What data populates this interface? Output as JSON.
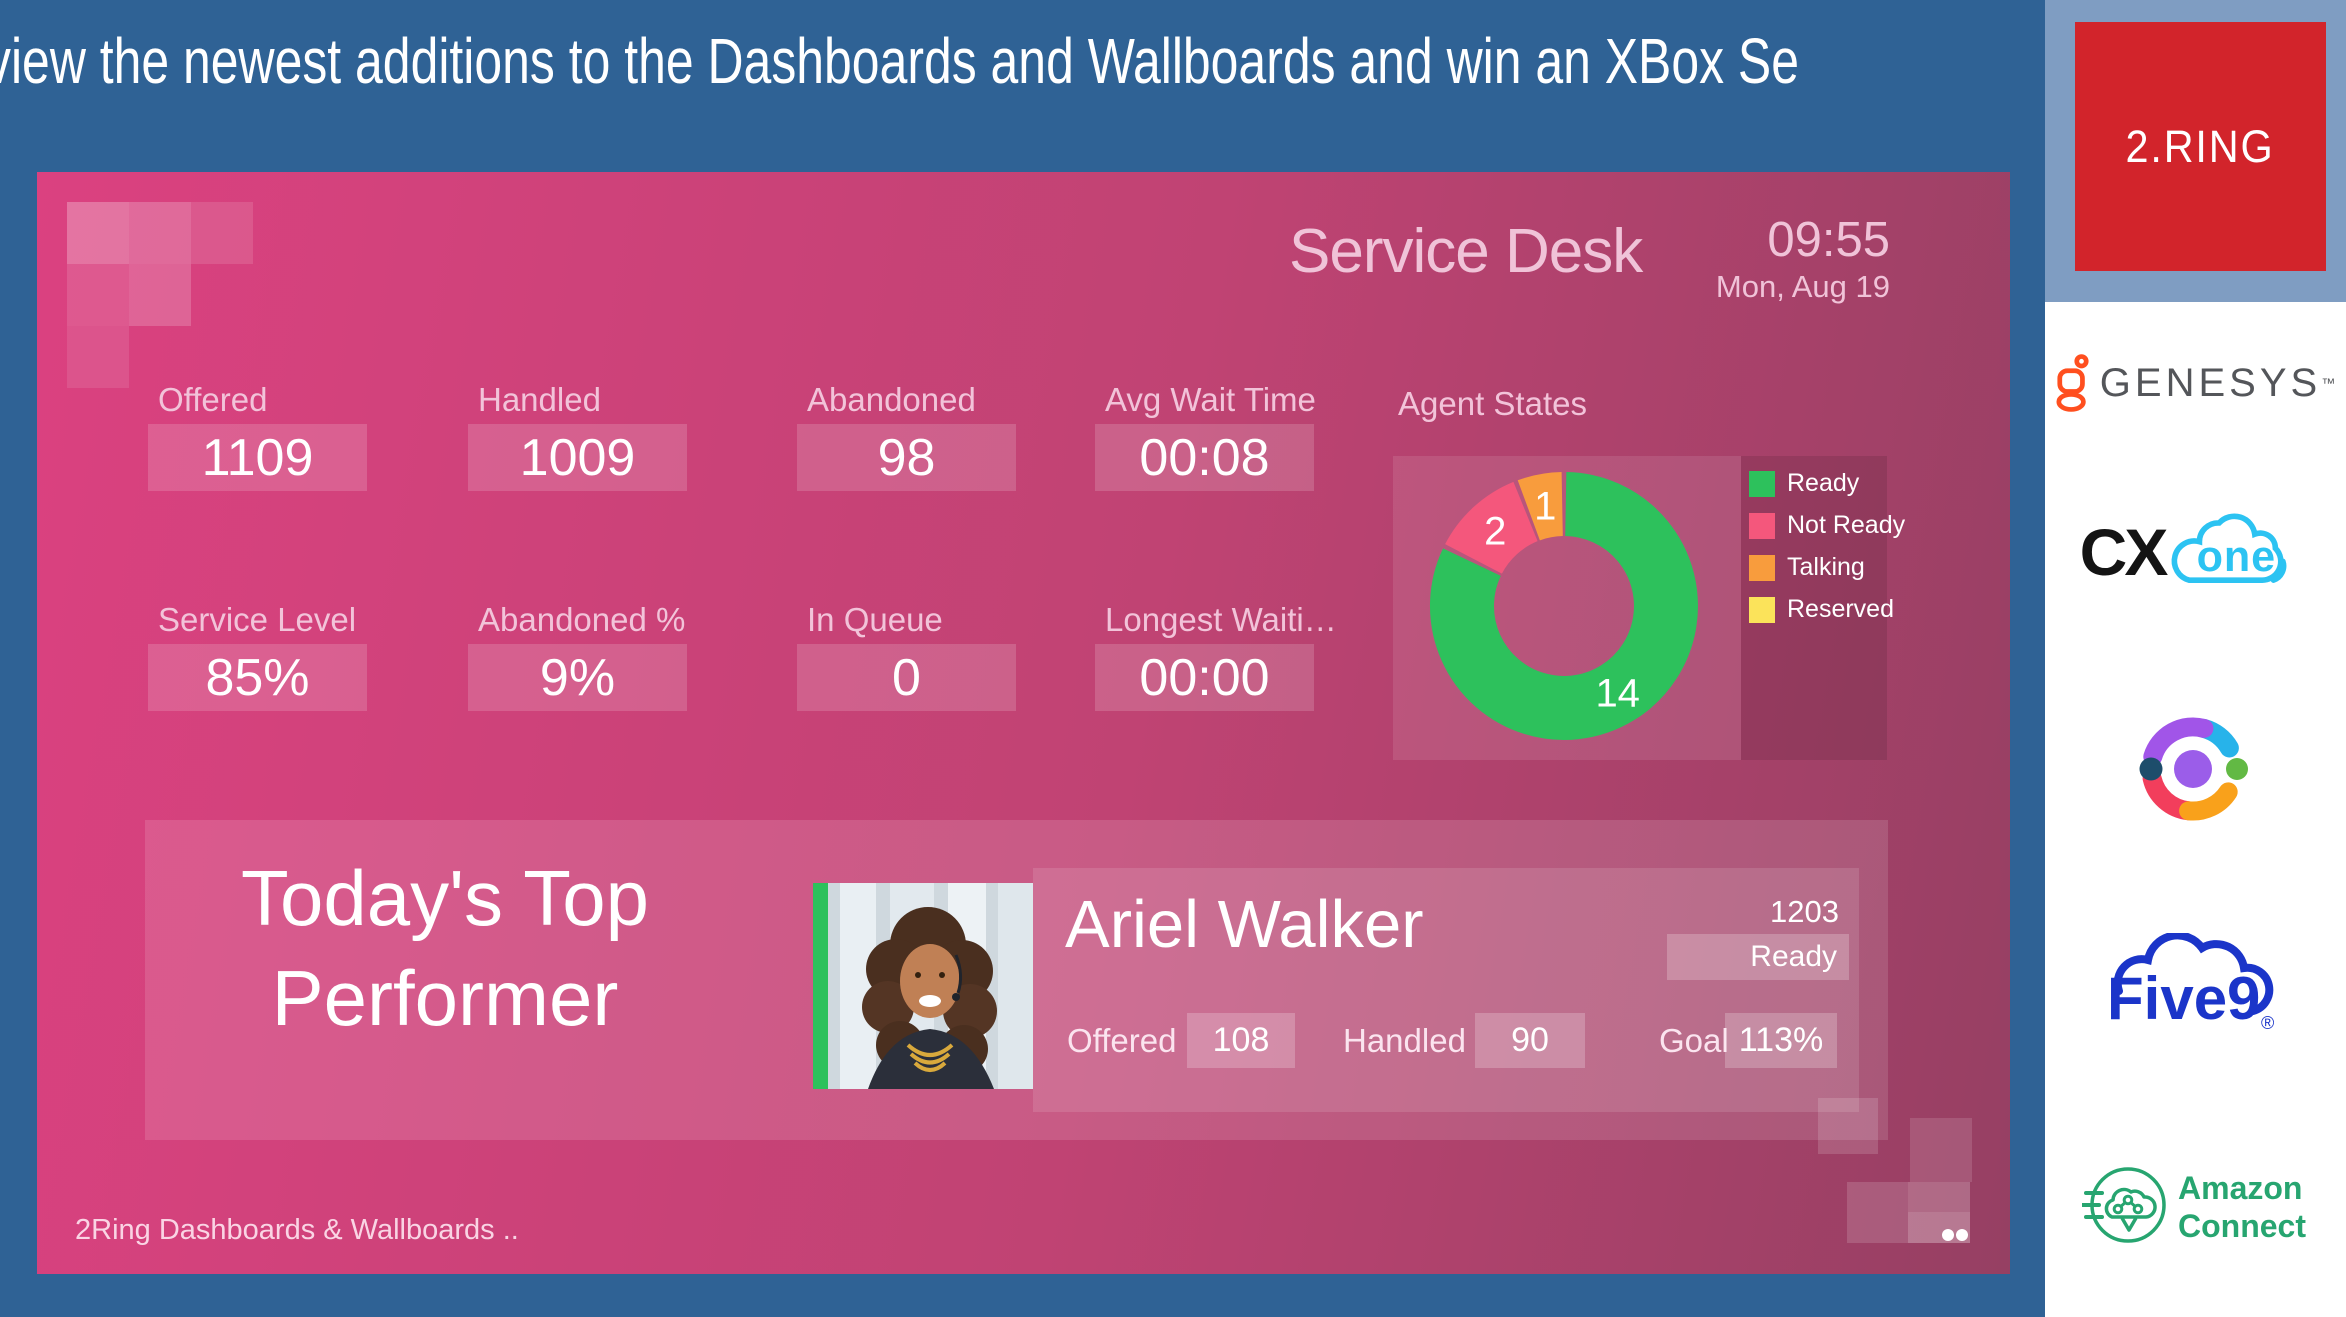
{
  "banner": {
    "text": "view the newest additions to the Dashboards and Wallboards and win an XBox Se"
  },
  "dashboard": {
    "title": "Service Desk",
    "time": "09:55",
    "date": "Mon, Aug 19",
    "kpis_row1": [
      {
        "label": "Offered",
        "value": "1109"
      },
      {
        "label": "Handled",
        "value": "1009"
      },
      {
        "label": "Abandoned",
        "value": "98"
      },
      {
        "label": "Avg Wait Time",
        "value": "00:08"
      }
    ],
    "kpis_row2": [
      {
        "label": "Service Level",
        "value": "85%"
      },
      {
        "label": "Abandoned %",
        "value": "9%"
      },
      {
        "label": "In Queue",
        "value": "0"
      },
      {
        "label": "Longest Waiti…",
        "value": "00:00"
      }
    ],
    "agent_states_title": "Agent States",
    "top_performer": {
      "heading": "Today's Top Performer",
      "name": "Ariel Walker",
      "agent_number": "1203",
      "state": "Ready",
      "stats": [
        {
          "label": "Offered",
          "value": "108"
        },
        {
          "label": "Handled",
          "value": "90"
        },
        {
          "label": "Goal",
          "value": "113%"
        }
      ]
    },
    "footer": "2Ring Dashboards & Wallboards .."
  },
  "chart_data": {
    "type": "pie",
    "donut": true,
    "title": "Agent States",
    "labels": [
      "Ready",
      "Not Ready",
      "Talking",
      "Reserved"
    ],
    "values": [
      14,
      2,
      1,
      0
    ],
    "colors": [
      "#2DC15C",
      "#F4577C",
      "#F89C3D",
      "#FBE35A"
    ],
    "legend_position": "right",
    "start_angle_deg": 0,
    "direction": "clockwise"
  },
  "sidebar": {
    "logos": {
      "tworing": "2.RING",
      "genesys": "GENESYS",
      "genesys_tm": "™",
      "cxone_cx": "CX",
      "cxone_one": "one",
      "five9": "Five9",
      "five9_reg": "®",
      "amazon_line1": "Amazon",
      "amazon_line2": "Connect"
    }
  },
  "colors": {
    "frame_blue": "#2F6295",
    "sidebar_top_blue": "#7F9DC2",
    "brand_red": "#D2242B",
    "dash_gradient_start": "#DB4180",
    "dash_gradient_end": "#964063",
    "ready_green": "#2DC15C",
    "not_ready_pink": "#F4577C",
    "talking_orange": "#F89C3D",
    "reserved_yellow": "#FBE35A",
    "genesys_orange": "#FF4F1F",
    "genesys_gray": "#54565A",
    "cxone_cyan": "#2CC3F2",
    "five9_blue": "#1B35C9",
    "amazon_green": "#27A570"
  }
}
